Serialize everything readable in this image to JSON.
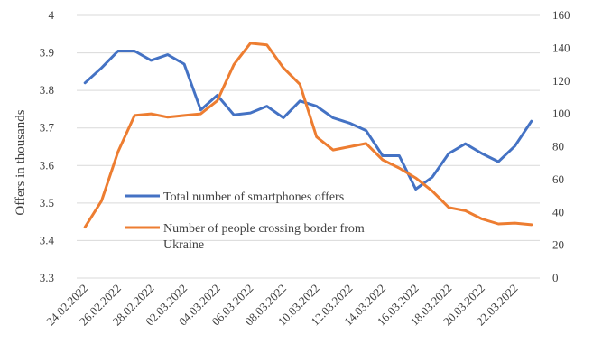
{
  "chart_data": {
    "type": "line",
    "title": "",
    "x": [
      "24.02.2022",
      "25.02.2022",
      "26.02.2022",
      "27.02.2022",
      "28.02.2022",
      "01.03.2022",
      "02.03.2022",
      "03.03.2022",
      "04.03.2022",
      "05.03.2022",
      "06.03.2022",
      "07.03.2022",
      "08.03.2022",
      "09.03.2022",
      "10.03.2022",
      "11.03.2022",
      "12.03.2022",
      "13.03.2022",
      "14.03.2022",
      "15.03.2022",
      "16.03.2022",
      "17.03.2022",
      "18.03.2022",
      "19.03.2022",
      "20.03.2022",
      "21.03.2022",
      "22.03.2022",
      "23.03.2022"
    ],
    "x_tick_labels": [
      "24.02.2022",
      "26.02.2022",
      "28.02.2022",
      "02.03.2022",
      "04.03.2022",
      "06.03.2022",
      "08.03.2022",
      "10.03.2022",
      "12.03.2022",
      "14.03.2022",
      "16.03.2022",
      "18.03.2022",
      "20.03.2022",
      "22.03.2022"
    ],
    "y_left": {
      "label": "Offers in thousands",
      "range": [
        3.3,
        4.0
      ],
      "ticks": [
        "3.3",
        "3.4",
        "3.5",
        "3.6",
        "3.7",
        "3.8",
        "3.9",
        "4"
      ]
    },
    "y_right": {
      "label": "",
      "range": [
        0,
        160
      ],
      "ticks": [
        "0",
        "20",
        "40",
        "60",
        "80",
        "100",
        "120",
        "140",
        "160"
      ]
    },
    "grid": "horizontal",
    "legend_position": "lower-left inside",
    "series": [
      {
        "name": "Total number of smartphones offers",
        "axis": "left",
        "color": "#4472c4",
        "values": [
          3.82,
          3.86,
          3.905,
          3.905,
          3.88,
          3.895,
          3.87,
          3.748,
          3.787,
          3.735,
          3.74,
          3.758,
          3.727,
          3.772,
          3.758,
          3.727,
          3.713,
          3.693,
          3.626,
          3.626,
          3.537,
          3.569,
          3.632,
          3.658,
          3.632,
          3.61,
          3.652,
          3.718
        ]
      },
      {
        "name": "Number of people crossing border from Ukraine",
        "axis": "right",
        "color": "#ed7d31",
        "values": [
          31,
          47,
          77,
          99,
          100,
          98,
          99,
          100,
          108,
          130,
          143,
          142,
          128,
          118,
          86,
          78,
          80,
          82,
          72,
          67,
          61,
          53,
          43,
          41,
          36,
          33,
          33.5,
          32.5
        ]
      }
    ]
  }
}
